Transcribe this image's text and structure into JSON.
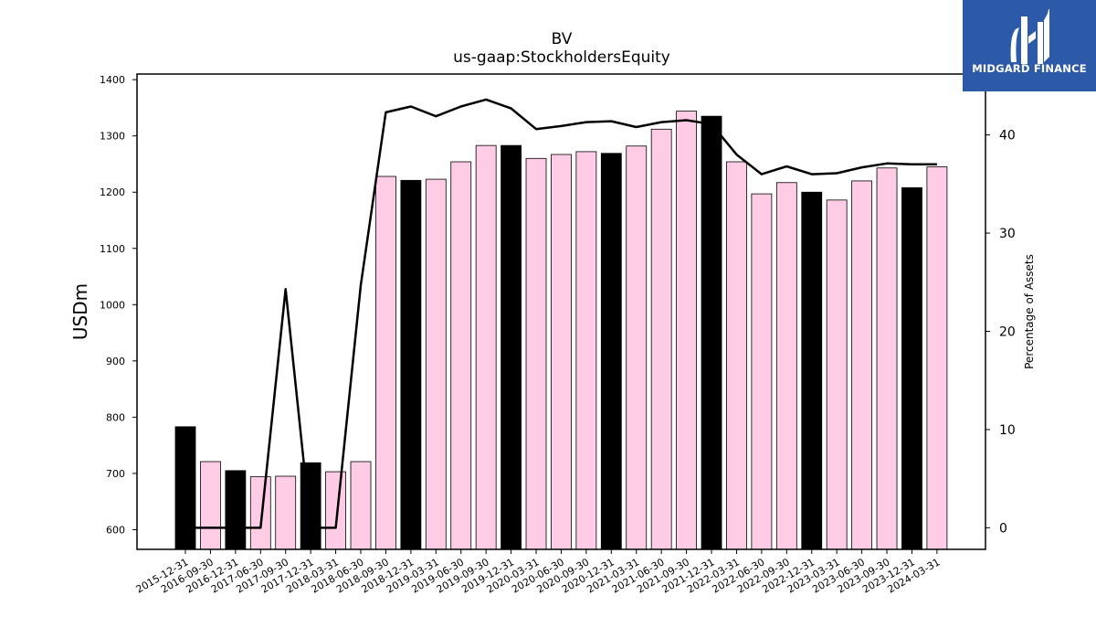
{
  "chart_data": {
    "type": "bar",
    "title": "BV",
    "subtitle": "us-gaap:StockholdersEquity",
    "ylabel": "USDm",
    "y2label": "Percentage of Assets",
    "ylim": [
      565,
      1410
    ],
    "y2lim": [
      -2.2,
      46.2
    ],
    "yticks": [
      600,
      700,
      800,
      900,
      1000,
      1100,
      1200,
      1300,
      1400
    ],
    "y2ticks": [
      0,
      10,
      20,
      30,
      40
    ],
    "categories": [
      "2015-12-31",
      "2016-09-30",
      "2016-12-31",
      "2017-06-30",
      "2017-09-30",
      "2017-12-31",
      "2018-03-31",
      "2018-06-30",
      "2018-09-30",
      "2018-12-31",
      "2019-03-31",
      "2019-06-30",
      "2019-09-30",
      "2019-12-31",
      "2020-03-31",
      "2020-06-30",
      "2020-09-30",
      "2020-12-31",
      "2021-03-31",
      "2021-06-30",
      "2021-09-30",
      "2021-12-31",
      "2022-03-31",
      "2022-06-30",
      "2022-09-30",
      "2022-12-31",
      "2023-03-31",
      "2023-06-30",
      "2023-09-30",
      "2023-12-31",
      "2024-03-31"
    ],
    "series": [
      {
        "values": [
          783,
          721,
          705,
          694,
          695,
          719,
          703,
          721,
          1228,
          1221,
          1223,
          1254,
          1283,
          1283,
          1260,
          1267,
          1272,
          1269,
          1282,
          1312,
          1344,
          1335,
          1254,
          1197,
          1217,
          1200,
          1186,
          1220,
          1243,
          1208,
          1245
        ],
        "colors": [
          "#000000",
          "#ffcce6",
          "#000000",
          "#ffcce6",
          "#ffcce6",
          "#000000",
          "#ffcce6",
          "#ffcce6",
          "#ffcce6",
          "#000000",
          "#ffcce6",
          "#ffcce6",
          "#ffcce6",
          "#000000",
          "#ffcce6",
          "#ffcce6",
          "#ffcce6",
          "#000000",
          "#ffcce6",
          "#ffcce6",
          "#ffcce6",
          "#000000",
          "#ffcce6",
          "#ffcce6",
          "#ffcce6",
          "#000000",
          "#ffcce6",
          "#ffcce6",
          "#ffcce6",
          "#000000",
          "#ffcce6"
        ]
      },
      {
        "axis": "right",
        "type": "line",
        "color": "#000000",
        "values": [
          0,
          0,
          0,
          0,
          24.3,
          0,
          0,
          24.7,
          42.3,
          42.9,
          41.9,
          42.9,
          43.6,
          42.7,
          40.6,
          40.9,
          41.3,
          41.4,
          40.8,
          41.3,
          41.5,
          41.1,
          38.0,
          36.0,
          36.8,
          36.0,
          36.1,
          36.7,
          37.1,
          37.0,
          37.0
        ]
      }
    ]
  },
  "logo": {
    "text": "MIDGARD FINANCE"
  }
}
